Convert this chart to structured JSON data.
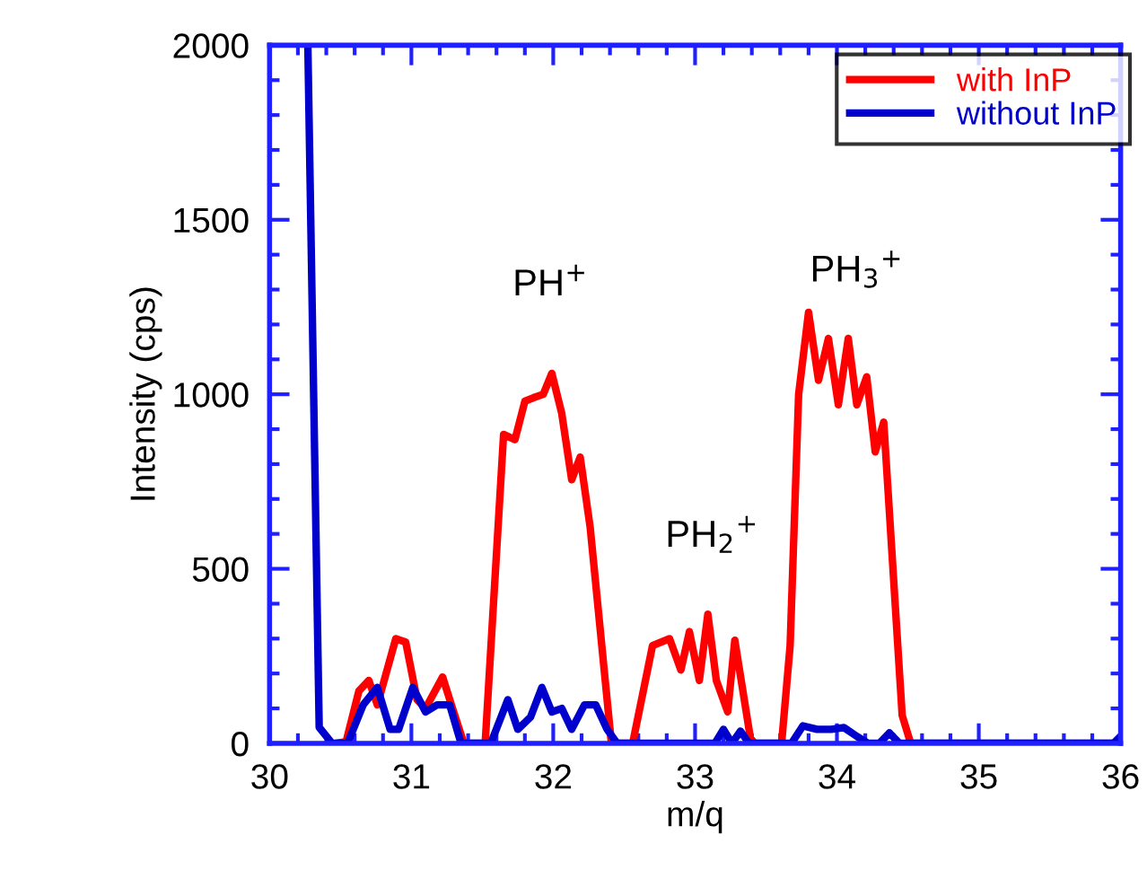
{
  "chart_data": {
    "type": "line",
    "xlabel": "m/q",
    "ylabel": "Intensity (cps)",
    "xlim": [
      30,
      36
    ],
    "ylim": [
      0,
      2000
    ],
    "xticks": [
      30,
      31,
      32,
      33,
      34,
      35,
      36
    ],
    "yticks": [
      0,
      500,
      1000,
      1500,
      2000
    ],
    "grid": false,
    "legend": "top right",
    "marker": "none",
    "line_style": "solid",
    "series": [
      {
        "name": "with InP",
        "color": "#ff0000",
        "x": [
          30.47,
          30.54,
          30.63,
          30.7,
          30.76,
          30.89,
          30.96,
          31.04,
          31.1,
          31.22,
          31.29,
          31.37,
          31.52,
          31.65,
          31.73,
          31.8,
          31.86,
          31.93,
          31.99,
          32.06,
          32.13,
          32.19,
          32.26,
          32.41,
          32.56,
          32.7,
          32.82,
          32.9,
          32.96,
          33.03,
          33.09,
          33.15,
          33.23,
          33.28,
          33.39,
          33.42,
          33.61,
          33.67,
          33.73,
          33.8,
          33.87,
          33.94,
          34.01,
          34.08,
          34.14,
          34.21,
          34.27,
          34.33,
          34.46,
          34.52,
          36
        ],
        "values": [
          0,
          5,
          150,
          180,
          110,
          300,
          290,
          125,
          100,
          190,
          100,
          0,
          0,
          885,
          870,
          980,
          990,
          1000,
          1060,
          945,
          755,
          820,
          620,
          0,
          0,
          280,
          300,
          210,
          320,
          180,
          370,
          180,
          90,
          295,
          15,
          0,
          0,
          280,
          1000,
          1235,
          1040,
          1160,
          970,
          1160,
          970,
          1050,
          835,
          920,
          80,
          0,
          0
        ]
      },
      {
        "name": "without InP",
        "color": "#0000cc",
        "x": [
          30.27,
          30.35,
          30.44,
          30.55,
          30.66,
          30.76,
          30.85,
          30.91,
          31.01,
          31.1,
          31.18,
          31.27,
          31.35,
          31.56,
          31.68,
          31.75,
          31.84,
          31.92,
          31.99,
          32.06,
          32.13,
          32.22,
          32.3,
          32.38,
          32.45,
          33.14,
          33.2,
          33.26,
          33.32,
          33.38,
          33.68,
          33.76,
          33.86,
          33.96,
          34.05,
          34.14,
          34.22,
          34.3,
          34.37,
          34.44,
          35.95,
          36
        ],
        "values": [
          2000,
          46,
          0,
          0,
          110,
          160,
          40,
          40,
          160,
          90,
          110,
          110,
          0,
          0,
          125,
          40,
          75,
          160,
          90,
          100,
          40,
          110,
          110,
          40,
          0,
          0,
          40,
          0,
          35,
          0,
          0,
          50,
          40,
          40,
          45,
          20,
          0,
          0,
          30,
          0,
          0,
          20
        ]
      }
    ],
    "annotations": [
      "PH$^{+}$",
      "PH$_{2}$$^{+}$",
      "PH$_{3}$$^{+}$"
    ]
  }
}
